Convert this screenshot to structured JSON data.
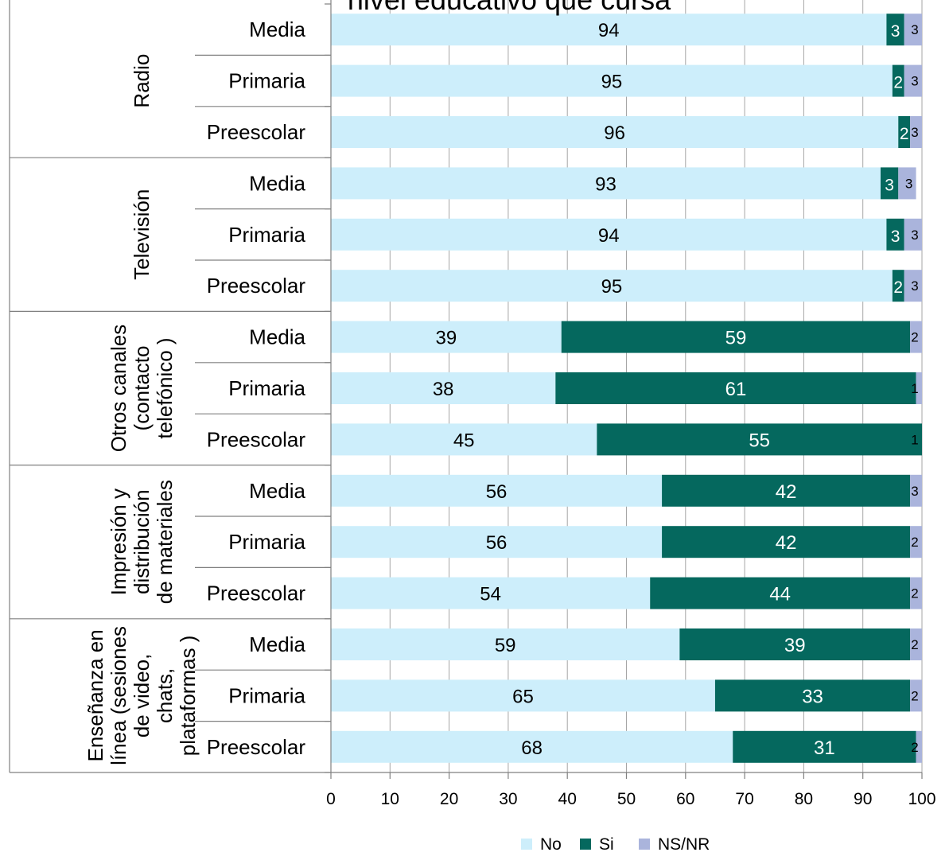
{
  "chart_data": {
    "type": "bar",
    "orientation": "horizontal",
    "stacked": true,
    "title": "nivel educativo que cursa",
    "xlim": [
      0,
      100
    ],
    "xticks": [
      0,
      10,
      20,
      30,
      40,
      50,
      60,
      70,
      80,
      90,
      100
    ],
    "grid": true,
    "legend_position": "bottom",
    "series": [
      {
        "name": "No",
        "color": "#cdeefb"
      },
      {
        "name": "Si",
        "color": "#05685e"
      },
      {
        "name": "NS/NR",
        "color": "#aab4dc"
      }
    ],
    "groups": [
      {
        "name": "Radio",
        "name_lines": [
          "Radio"
        ],
        "rows": [
          {
            "label": "Media",
            "values": [
              94,
              3,
              3
            ]
          },
          {
            "label": "Primaria",
            "values": [
              95,
              2,
              3
            ]
          },
          {
            "label": "Preescolar",
            "values": [
              96,
              2,
              3
            ]
          }
        ]
      },
      {
        "name": "Televisión",
        "name_lines": [
          "Televisión"
        ],
        "rows": [
          {
            "label": "Media",
            "values": [
              93,
              3,
              3
            ]
          },
          {
            "label": "Primaria",
            "values": [
              94,
              3,
              3
            ]
          },
          {
            "label": "Preescolar",
            "values": [
              95,
              2,
              3
            ]
          }
        ]
      },
      {
        "name": "Otros canales (contacto telefónico )",
        "name_lines": [
          "Otros canales",
          "(contacto",
          "telefónico )"
        ],
        "rows": [
          {
            "label": "Media",
            "values": [
              39,
              59,
              2
            ]
          },
          {
            "label": "Primaria",
            "values": [
              38,
              61,
              1
            ]
          },
          {
            "label": "Preescolar",
            "values": [
              45,
              55,
              1
            ]
          }
        ]
      },
      {
        "name": "Impresión y distribución de materiales",
        "name_lines": [
          "Impresión y",
          "distribución",
          "de materiales"
        ],
        "rows": [
          {
            "label": "Media",
            "values": [
              56,
              42,
              3
            ]
          },
          {
            "label": "Primaria",
            "values": [
              56,
              42,
              2
            ]
          },
          {
            "label": "Preescolar",
            "values": [
              54,
              44,
              2
            ]
          }
        ]
      },
      {
        "name": "Enseñanza en línea (sesiones de video, chats, plataformas )",
        "name_lines": [
          "Enseñanza en",
          "línea (sesiones",
          "de video,",
          "chats,",
          "plataformas )"
        ],
        "rows": [
          {
            "label": "Media",
            "values": [
              59,
              39,
              2
            ]
          },
          {
            "label": "Primaria",
            "values": [
              65,
              33,
              2
            ]
          },
          {
            "label": "Preescolar",
            "values": [
              68,
              31,
              2
            ]
          }
        ]
      }
    ]
  }
}
